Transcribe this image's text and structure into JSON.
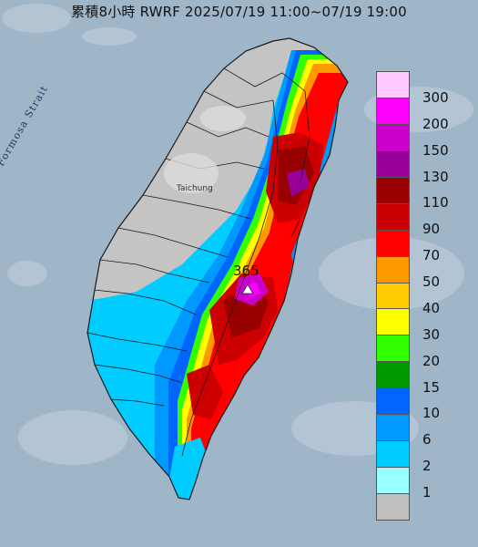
{
  "title": "累積8小時 RWRF 2025/07/19 11:00~07/19 19:00",
  "map_labels": {
    "strait": "Formosa Strait",
    "city": "Taichung",
    "max_value": "365"
  },
  "legend": {
    "levels": [
      {
        "label": "300",
        "color": "#ffcaff"
      },
      {
        "label": "200",
        "color": "#fe00fe"
      },
      {
        "label": "150",
        "color": "#cc00cc"
      },
      {
        "label": "130",
        "color": "#990099"
      },
      {
        "label": "110",
        "color": "#990000"
      },
      {
        "label": "90",
        "color": "#cc0000"
      },
      {
        "label": "70",
        "color": "#fe0000"
      },
      {
        "label": "50",
        "color": "#fe9900"
      },
      {
        "label": "40",
        "color": "#fecc00"
      },
      {
        "label": "30",
        "color": "#ffff00"
      },
      {
        "label": "20",
        "color": "#33ff00"
      },
      {
        "label": "15",
        "color": "#009900"
      },
      {
        "label": "10",
        "color": "#0066ff"
      },
      {
        "label": "6",
        "color": "#0099ff"
      },
      {
        "label": "2",
        "color": "#00ccff"
      },
      {
        "label": "1",
        "color": "#99ffff"
      },
      {
        "label": "",
        "color": "#c0c0c0"
      }
    ]
  },
  "colors": {
    "sea": "#9fb6c8",
    "land_dry": "#c4c4c4",
    "boundary": "#1a1a1a"
  }
}
